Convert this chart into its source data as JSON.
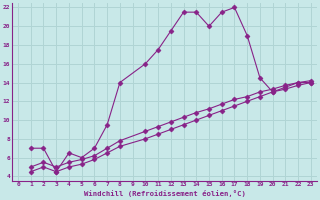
{
  "xlabel": "Windchill (Refroidissement éolien,°C)",
  "bg_color": "#c8e8e8",
  "grid_color": "#b0d4d4",
  "line_color": "#882288",
  "xlim": [
    -0.5,
    23.5
  ],
  "ylim": [
    3.5,
    22.5
  ],
  "xticks": [
    0,
    1,
    2,
    3,
    4,
    5,
    6,
    7,
    8,
    9,
    10,
    11,
    12,
    13,
    14,
    15,
    16,
    17,
    18,
    19,
    20,
    21,
    22,
    23
  ],
  "yticks": [
    4,
    6,
    8,
    10,
    12,
    14,
    16,
    18,
    20,
    22
  ],
  "line1_x": [
    1,
    2,
    3,
    4,
    5,
    6,
    7,
    8,
    10,
    11,
    12,
    13,
    14,
    15,
    16,
    17,
    18,
    19,
    20,
    21,
    22,
    23
  ],
  "line1_y": [
    7,
    7,
    4.5,
    6.5,
    6,
    7,
    9.5,
    14,
    16,
    17.5,
    19.5,
    21.5,
    21.5,
    20,
    21.5,
    22,
    19,
    14.5,
    13,
    13.5,
    14,
    14
  ],
  "line2_x": [
    1,
    2,
    3,
    4,
    5,
    6,
    7,
    8,
    10,
    11,
    12,
    13,
    14,
    15,
    16,
    17,
    18,
    19,
    20,
    21,
    22,
    23
  ],
  "line2_y": [
    5,
    5.5,
    5,
    5.5,
    5.8,
    6.2,
    7.0,
    7.8,
    8.8,
    9.3,
    9.8,
    10.3,
    10.8,
    11.2,
    11.7,
    12.2,
    12.5,
    13.0,
    13.3,
    13.7,
    14.0,
    14.2
  ],
  "line3_x": [
    1,
    2,
    3,
    4,
    5,
    6,
    7,
    8,
    10,
    11,
    12,
    13,
    14,
    15,
    16,
    17,
    18,
    19,
    20,
    21,
    22,
    23
  ],
  "line3_y": [
    4.5,
    5.0,
    4.5,
    5.0,
    5.3,
    5.8,
    6.5,
    7.2,
    8.0,
    8.5,
    9.0,
    9.5,
    10.0,
    10.5,
    11.0,
    11.5,
    12.0,
    12.5,
    13.0,
    13.3,
    13.7,
    14.0
  ]
}
